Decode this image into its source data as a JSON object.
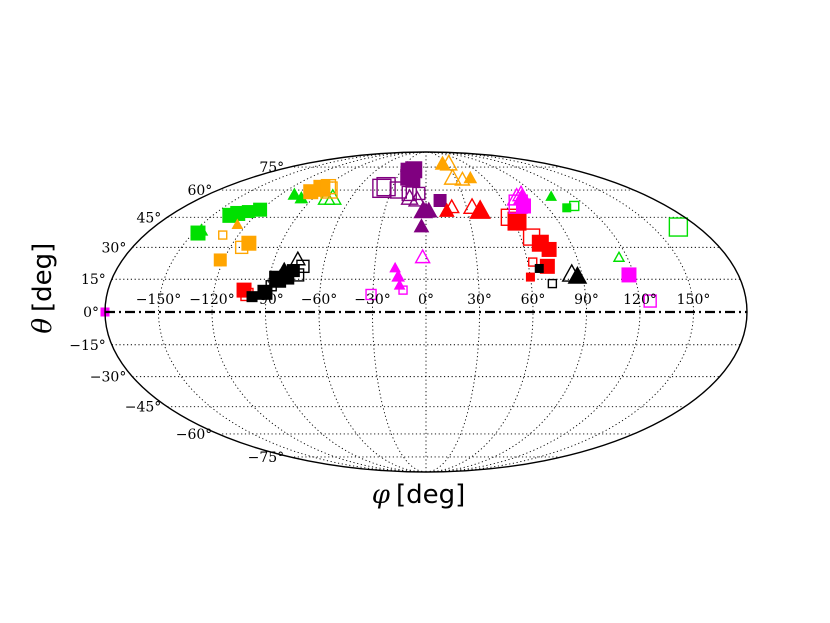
{
  "chart_data": {
    "type": "scatter",
    "projection": "mollweide",
    "xlabel": {
      "symbol": "φ",
      "unit": "[deg]"
    },
    "ylabel": {
      "symbol": "θ",
      "unit": "[deg]"
    },
    "xlim": [
      -180,
      180
    ],
    "ylim": [
      -90,
      90
    ],
    "grid": true,
    "x_ticks": [
      -150,
      -120,
      -90,
      -60,
      -30,
      0,
      30,
      60,
      90,
      120,
      150
    ],
    "y_ticks": [
      75,
      60,
      45,
      30,
      15,
      0,
      -15,
      -30,
      -45,
      -60,
      -75
    ],
    "x_tick_labels": [
      "−150°",
      "−120°",
      "−90°",
      "−60°",
      "−30°",
      "0°",
      "30°",
      "60°",
      "90°",
      "120°",
      "150°"
    ],
    "y_tick_labels": [
      "75°",
      "60°",
      "45°",
      "30°",
      "15°",
      "0°",
      "−15°",
      "−30°",
      "−45°",
      "−60°",
      "−75°"
    ],
    "reference_line": {
      "y": 0,
      "style": "dash-dot"
    },
    "colors": {
      "green": "#00e000",
      "orange": "#ffa500",
      "purple": "#800080",
      "red": "#ff0000",
      "magenta": "#ff00ff",
      "black": "#000000"
    },
    "points": [
      {
        "x": -147,
        "y": 37,
        "c": "green",
        "m": "square",
        "f": true,
        "s": 14
      },
      {
        "x": -146,
        "y": 38,
        "c": "green",
        "m": "triangle",
        "f": true,
        "s": 12
      },
      {
        "x": -138,
        "y": 46,
        "c": "green",
        "m": "square",
        "f": true,
        "s": 14
      },
      {
        "x": -134,
        "y": 47,
        "c": "green",
        "m": "square",
        "f": true,
        "s": 14
      },
      {
        "x": -128,
        "y": 48,
        "c": "green",
        "m": "square",
        "f": true,
        "s": 12
      },
      {
        "x": -121,
        "y": 49,
        "c": "green",
        "m": "square",
        "f": true,
        "s": 13
      },
      {
        "x": -108,
        "y": 57,
        "c": "green",
        "m": "triangle",
        "f": true,
        "s": 12
      },
      {
        "x": -99,
        "y": 55,
        "c": "green",
        "m": "triangle",
        "f": true,
        "s": 12
      },
      {
        "x": -79,
        "y": 55,
        "c": "green",
        "m": "triangle",
        "f": false,
        "s": 16
      },
      {
        "x": -74,
        "y": 55,
        "c": "green",
        "m": "triangle",
        "f": false,
        "s": 16
      },
      {
        "x": 104,
        "y": 50,
        "c": "green",
        "m": "square",
        "f": true,
        "s": 8
      },
      {
        "x": 101,
        "y": 56,
        "c": "green",
        "m": "triangle",
        "f": true,
        "s": 10
      },
      {
        "x": 111,
        "y": 51,
        "c": "green",
        "m": "square",
        "f": false,
        "s": 9
      },
      {
        "x": 115,
        "y": 25,
        "c": "green",
        "m": "triangle",
        "f": false,
        "s": 10
      },
      {
        "x": 167,
        "y": 40,
        "c": "green",
        "m": "square",
        "f": false,
        "s": 18
      },
      {
        "x": -126,
        "y": 41,
        "c": "orange",
        "m": "triangle",
        "f": true,
        "s": 10
      },
      {
        "x": -130,
        "y": 36,
        "c": "orange",
        "m": "square",
        "f": false,
        "s": 8
      },
      {
        "x": -110,
        "y": 32,
        "c": "orange",
        "m": "square",
        "f": true,
        "s": 14
      },
      {
        "x": -113,
        "y": 30,
        "c": "orange",
        "m": "square",
        "f": false,
        "s": 12
      },
      {
        "x": -122,
        "y": 24,
        "c": "orange",
        "m": "square",
        "f": true,
        "s": 12
      },
      {
        "x": -98,
        "y": 59,
        "c": "orange",
        "m": "square",
        "f": true,
        "s": 14
      },
      {
        "x": -92,
        "y": 61,
        "c": "orange",
        "m": "square",
        "f": true,
        "s": 16
      },
      {
        "x": -84,
        "y": 60,
        "c": "orange",
        "m": "square",
        "f": false,
        "s": 16
      },
      {
        "x": -88,
        "y": 62,
        "c": "orange",
        "m": "square",
        "f": false,
        "s": 14
      },
      {
        "x": 24,
        "y": 77,
        "c": "orange",
        "m": "triangle",
        "f": true,
        "s": 14
      },
      {
        "x": 33,
        "y": 77,
        "c": "orange",
        "m": "triangle",
        "f": false,
        "s": 16
      },
      {
        "x": 27,
        "y": 67,
        "c": "orange",
        "m": "triangle",
        "f": false,
        "s": 16
      },
      {
        "x": 36,
        "y": 66,
        "c": "orange",
        "m": "triangle",
        "f": false,
        "s": 14
      },
      {
        "x": 45,
        "y": 67,
        "c": "orange",
        "m": "triangle",
        "f": true,
        "s": 12
      },
      {
        "x": -20,
        "y": 72,
        "c": "purple",
        "m": "square",
        "f": true,
        "s": 16
      },
      {
        "x": -15,
        "y": 73,
        "c": "purple",
        "m": "square",
        "f": true,
        "s": 16
      },
      {
        "x": -18,
        "y": 68,
        "c": "purple",
        "m": "square",
        "f": true,
        "s": 16
      },
      {
        "x": -13,
        "y": 66,
        "c": "purple",
        "m": "square",
        "f": true,
        "s": 14
      },
      {
        "x": -39,
        "y": 61,
        "c": "purple",
        "m": "square",
        "f": false,
        "s": 18
      },
      {
        "x": -36,
        "y": 62,
        "c": "purple",
        "m": "square",
        "f": false,
        "s": 18
      },
      {
        "x": -24,
        "y": 60,
        "c": "purple",
        "m": "square",
        "f": false,
        "s": 16
      },
      {
        "x": -14,
        "y": 58,
        "c": "purple",
        "m": "square",
        "f": false,
        "s": 14
      },
      {
        "x": -6,
        "y": 58,
        "c": "purple",
        "m": "square",
        "f": false,
        "s": 12
      },
      {
        "x": -13,
        "y": 55,
        "c": "purple",
        "m": "triangle",
        "f": false,
        "s": 16
      },
      {
        "x": -7,
        "y": 54,
        "c": "purple",
        "m": "triangle",
        "f": false,
        "s": 16
      },
      {
        "x": -2,
        "y": 48,
        "c": "purple",
        "m": "triangle",
        "f": true,
        "s": 18
      },
      {
        "x": 2,
        "y": 48,
        "c": "purple",
        "m": "triangle",
        "f": true,
        "s": 16
      },
      {
        "x": 0,
        "y": 48,
        "c": "purple",
        "m": "triangle",
        "f": false,
        "s": 14
      },
      {
        "x": 11,
        "y": 54,
        "c": "purple",
        "m": "square",
        "f": true,
        "s": 12
      },
      {
        "x": -3,
        "y": 40,
        "c": "purple",
        "m": "triangle",
        "f": true,
        "s": 14
      },
      {
        "x": 15,
        "y": 48,
        "c": "red",
        "m": "triangle",
        "f": true,
        "s": 14
      },
      {
        "x": 19,
        "y": 50,
        "c": "red",
        "m": "triangle",
        "f": false,
        "s": 14
      },
      {
        "x": 34,
        "y": 50,
        "c": "red",
        "m": "triangle",
        "f": false,
        "s": 16
      },
      {
        "x": 39,
        "y": 48,
        "c": "red",
        "m": "triangle",
        "f": true,
        "s": 20
      },
      {
        "x": 58,
        "y": 45,
        "c": "red",
        "m": "square",
        "f": false,
        "s": 16
      },
      {
        "x": 62,
        "y": 43,
        "c": "red",
        "m": "square",
        "f": true,
        "s": 18
      },
      {
        "x": 67,
        "y": 35,
        "c": "red",
        "m": "square",
        "f": false,
        "s": 16
      },
      {
        "x": 71,
        "y": 32,
        "c": "red",
        "m": "square",
        "f": true,
        "s": 16
      },
      {
        "x": 75,
        "y": 29,
        "c": "red",
        "m": "square",
        "f": true,
        "s": 14
      },
      {
        "x": 63,
        "y": 23,
        "c": "red",
        "m": "square",
        "f": false,
        "s": 8
      },
      {
        "x": 71,
        "y": 21,
        "c": "red",
        "m": "square",
        "f": true,
        "s": 14
      },
      {
        "x": 60,
        "y": 16,
        "c": "red",
        "m": "square",
        "f": true,
        "s": 8
      },
      {
        "x": -103,
        "y": 10,
        "c": "red",
        "m": "square",
        "f": true,
        "s": 14
      },
      {
        "x": -101,
        "y": 8,
        "c": "red",
        "m": "square",
        "f": false,
        "s": 12
      },
      {
        "x": 72,
        "y": 55,
        "c": "magenta",
        "m": "triangle",
        "f": false,
        "s": 18
      },
      {
        "x": 76,
        "y": 55,
        "c": "magenta",
        "m": "triangle",
        "f": true,
        "s": 16
      },
      {
        "x": 70,
        "y": 52,
        "c": "magenta",
        "m": "square",
        "f": false,
        "s": 18
      },
      {
        "x": 73,
        "y": 51,
        "c": "magenta",
        "m": "square",
        "f": true,
        "s": 14
      },
      {
        "x": 78,
        "y": 57,
        "c": "magenta",
        "m": "triangle",
        "f": false,
        "s": 16
      },
      {
        "x": -2,
        "y": 25,
        "c": "magenta",
        "m": "triangle",
        "f": false,
        "s": 14
      },
      {
        "x": -18,
        "y": 20,
        "c": "magenta",
        "m": "triangle",
        "f": true,
        "s": 10
      },
      {
        "x": -16,
        "y": 16,
        "c": "magenta",
        "m": "triangle",
        "f": true,
        "s": 12
      },
      {
        "x": -15,
        "y": 12,
        "c": "magenta",
        "m": "triangle",
        "f": true,
        "s": 10
      },
      {
        "x": -13,
        "y": 10,
        "c": "magenta",
        "m": "square",
        "f": false,
        "s": 8
      },
      {
        "x": -31,
        "y": 8,
        "c": "magenta",
        "m": "square",
        "f": false,
        "s": 10
      },
      {
        "x": 117,
        "y": 17,
        "c": "magenta",
        "m": "square",
        "f": true,
        "s": 14
      },
      {
        "x": 126,
        "y": 5,
        "c": "magenta",
        "m": "square",
        "f": false,
        "s": 12
      },
      {
        "x": -180,
        "y": 0,
        "c": "magenta",
        "m": "square",
        "f": true,
        "s": 8
      },
      {
        "x": -98,
        "y": 7,
        "c": "black",
        "m": "square",
        "f": true,
        "s": 10
      },
      {
        "x": -91,
        "y": 9,
        "c": "black",
        "m": "square",
        "f": true,
        "s": 14
      },
      {
        "x": -88,
        "y": 12,
        "c": "black",
        "m": "square",
        "f": false,
        "s": 10
      },
      {
        "x": -85,
        "y": 15,
        "c": "black",
        "m": "square",
        "f": true,
        "s": 16
      },
      {
        "x": -82,
        "y": 18,
        "c": "black",
        "m": "triangle",
        "f": true,
        "s": 18
      },
      {
        "x": -80,
        "y": 16,
        "c": "black",
        "m": "square",
        "f": true,
        "s": 14
      },
      {
        "x": -77,
        "y": 19,
        "c": "black",
        "m": "square",
        "f": true,
        "s": 12
      },
      {
        "x": -74,
        "y": 17,
        "c": "black",
        "m": "square",
        "f": false,
        "s": 12
      },
      {
        "x": -72,
        "y": 21,
        "c": "black",
        "m": "square",
        "f": false,
        "s": 12
      },
      {
        "x": -76,
        "y": 24,
        "c": "black",
        "m": "triangle",
        "f": false,
        "s": 14
      },
      {
        "x": 66,
        "y": 20,
        "c": "black",
        "m": "square",
        "f": true,
        "s": 8
      },
      {
        "x": 72,
        "y": 13,
        "c": "black",
        "m": "square",
        "f": false,
        "s": 8
      },
      {
        "x": 87,
        "y": 16,
        "c": "black",
        "m": "triangle",
        "f": true,
        "s": 18
      },
      {
        "x": 84,
        "y": 17,
        "c": "black",
        "m": "triangle",
        "f": false,
        "s": 18
      }
    ]
  }
}
